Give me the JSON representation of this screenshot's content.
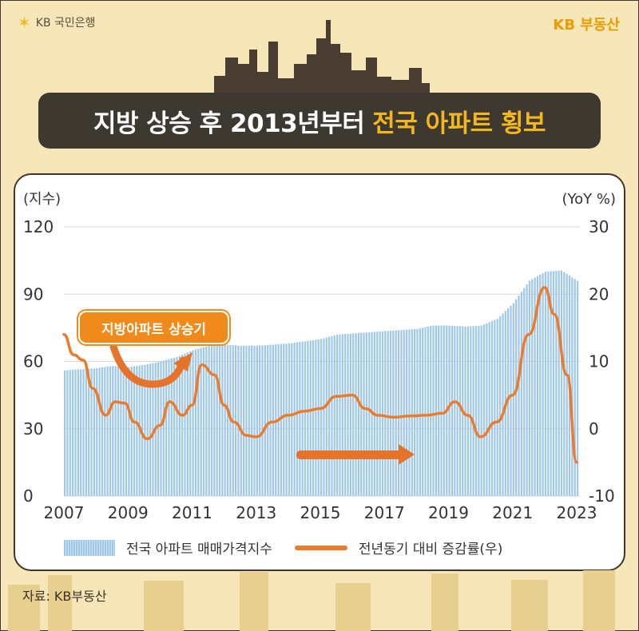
{
  "brand": {
    "left": "KB 국민은행",
    "right": "KB 부동산"
  },
  "title": {
    "main": "지방 상승 후 2013년부터",
    "highlight": "전국 아파트 횡보"
  },
  "callout": "지방아파트 상승기",
  "source": "자료: KB부동산",
  "colors": {
    "bar": "#9ec7ea",
    "line": "#ea7c2e",
    "arrow": "#e5742a"
  },
  "chart_data": {
    "type": "bar+line",
    "left_axis_unit": "(지수)",
    "right_axis_unit": "(YoY %)",
    "left_ticks": [
      "120",
      "90",
      "60",
      "30",
      "0"
    ],
    "right_ticks": [
      "30",
      "20",
      "10",
      "0",
      "-10"
    ],
    "ylim_left": [
      0,
      120
    ],
    "ylim_right": [
      -10,
      30
    ],
    "x_ticks": [
      "2007",
      "2009",
      "2011",
      "2013",
      "2015",
      "2017",
      "2019",
      "2021",
      "2023"
    ],
    "xlim": [
      2007,
      2023.1
    ],
    "legend": [
      "전국 아파트 매매가격지수",
      "전년동기 대비 증감률(우)"
    ],
    "series": [
      {
        "name": "전국 아파트 매매가격지수",
        "axis": "left",
        "kind": "bar",
        "x": [
          2007,
          2007.5,
          2008,
          2008.5,
          2009,
          2009.5,
          2010,
          2010.5,
          2011,
          2011.5,
          2012,
          2012.5,
          2013,
          2013.5,
          2014,
          2014.5,
          2015,
          2015.5,
          2016,
          2016.5,
          2017,
          2017.5,
          2018,
          2018.5,
          2019,
          2019.5,
          2020,
          2020.5,
          2021,
          2021.5,
          2022,
          2022.5,
          2023
        ],
        "values": [
          56,
          56.5,
          57,
          58,
          57.5,
          58.5,
          60,
          62,
          65,
          67,
          67.5,
          67,
          67,
          67.5,
          68,
          69,
          70,
          72,
          72.5,
          73,
          73.5,
          74,
          74.5,
          76,
          76,
          75.5,
          76,
          79,
          86,
          96,
          100,
          100.5,
          96
        ]
      },
      {
        "name": "전년동기 대비 증감률(우)",
        "axis": "right",
        "kind": "line",
        "x": [
          2007,
          2007.3,
          2007.6,
          2007.9,
          2008.3,
          2008.6,
          2008.9,
          2009.2,
          2009.6,
          2010.0,
          2010.3,
          2010.7,
          2011.0,
          2011.3,
          2011.7,
          2012.0,
          2012.3,
          2012.7,
          2013.0,
          2013.5,
          2014.0,
          2014.5,
          2015.0,
          2015.5,
          2016.0,
          2016.4,
          2016.8,
          2017.3,
          2017.8,
          2018.3,
          2018.8,
          2019.2,
          2019.6,
          2020.0,
          2020.5,
          2021.0,
          2021.5,
          2022.0,
          2022.3,
          2022.7,
          2023.0
        ],
        "values": [
          14,
          11,
          10.2,
          6,
          2,
          4,
          3.8,
          1,
          -1.5,
          0.5,
          4,
          2,
          3.5,
          9.5,
          8,
          3.5,
          1,
          -1,
          -1.2,
          1,
          2,
          2.6,
          3,
          4.8,
          5,
          3,
          2,
          1.7,
          1.9,
          2,
          2.3,
          4,
          2,
          -1.2,
          1,
          5,
          14,
          21,
          17,
          8,
          -5
        ]
      }
    ]
  }
}
